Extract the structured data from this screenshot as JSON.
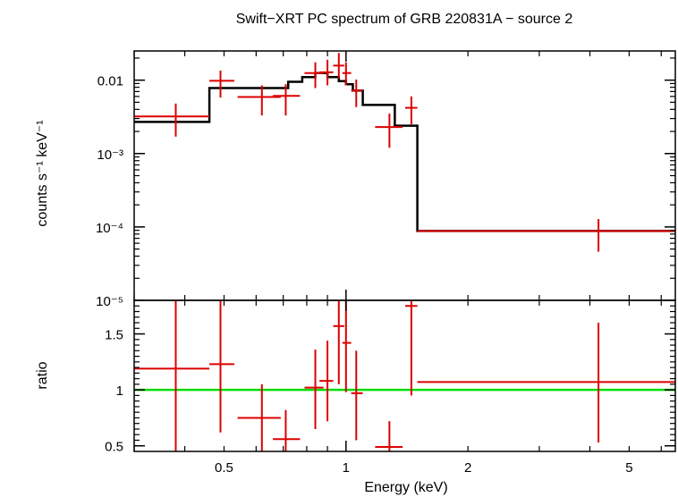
{
  "chart_data": [
    {
      "type": "step+errorbar",
      "title": "Swift−XRT PC spectrum of GRB 220831A − source 2",
      "xlabel": "Energy (keV)",
      "ylabel": "counts s⁻¹ keV⁻¹",
      "xscale": "log",
      "yscale": "log",
      "xlim": [
        0.3,
        6.5
      ],
      "ylim": [
        1e-05,
        0.025
      ],
      "ytick_labels": [
        {
          "v": 0.01,
          "t": "0.01"
        },
        {
          "v": 0.001,
          "t": "10⁻³"
        },
        {
          "v": 0.0001,
          "t": "10⁻⁴"
        },
        {
          "v": 1e-05,
          "t": "10⁻⁵"
        }
      ],
      "model_step": {
        "color": "#000000",
        "points": [
          [
            0.3,
            0.0027
          ],
          [
            0.46,
            0.0027
          ],
          [
            0.46,
            0.0078
          ],
          [
            0.72,
            0.0078
          ],
          [
            0.72,
            0.0095
          ],
          [
            0.78,
            0.0095
          ],
          [
            0.78,
            0.011
          ],
          [
            0.84,
            0.011
          ],
          [
            0.84,
            0.0125
          ],
          [
            0.9,
            0.0125
          ],
          [
            0.9,
            0.011
          ],
          [
            0.96,
            0.011
          ],
          [
            0.96,
            0.0097
          ],
          [
            1.0,
            0.0097
          ],
          [
            1.0,
            0.0088
          ],
          [
            1.04,
            0.0088
          ],
          [
            1.04,
            0.0072
          ],
          [
            1.1,
            0.0072
          ],
          [
            1.1,
            0.0046
          ],
          [
            1.32,
            0.0046
          ],
          [
            1.32,
            0.0024
          ],
          [
            1.5,
            0.0024
          ],
          [
            1.5,
            8.8e-05
          ],
          [
            6.5,
            8.8e-05
          ]
        ]
      },
      "data_points": {
        "color": "#dd0000",
        "points": [
          {
            "x": 0.38,
            "xlo": 0.3,
            "xhi": 0.46,
            "y": 0.0032,
            "ylo": 0.0017,
            "yhi": 0.0048
          },
          {
            "x": 0.49,
            "xlo": 0.46,
            "xhi": 0.53,
            "y": 0.0098,
            "ylo": 0.0058,
            "yhi": 0.0135
          },
          {
            "x": 0.62,
            "xlo": 0.54,
            "xhi": 0.69,
            "y": 0.0059,
            "ylo": 0.0033,
            "yhi": 0.0085
          },
          {
            "x": 0.71,
            "xlo": 0.66,
            "xhi": 0.77,
            "y": 0.0061,
            "ylo": 0.0033,
            "yhi": 0.0088
          },
          {
            "x": 0.84,
            "xlo": 0.79,
            "xhi": 0.88,
            "y": 0.0125,
            "ylo": 0.0078,
            "yhi": 0.0175
          },
          {
            "x": 0.9,
            "xlo": 0.86,
            "xhi": 0.93,
            "y": 0.0128,
            "ylo": 0.0085,
            "yhi": 0.019
          },
          {
            "x": 0.96,
            "xlo": 0.93,
            "xhi": 0.99,
            "y": 0.0158,
            "ylo": 0.0105,
            "yhi": 0.0235
          },
          {
            "x": 1.0,
            "xlo": 0.98,
            "xhi": 1.03,
            "y": 0.0125,
            "ylo": 0.0085,
            "yhi": 0.0175
          },
          {
            "x": 1.06,
            "xlo": 1.03,
            "xhi": 1.1,
            "y": 0.0072,
            "ylo": 0.0043,
            "yhi": 0.0102
          },
          {
            "x": 1.28,
            "xlo": 1.18,
            "xhi": 1.38,
            "y": 0.0023,
            "ylo": 0.0012,
            "yhi": 0.0035
          },
          {
            "x": 1.45,
            "xlo": 1.4,
            "xhi": 1.5,
            "y": 0.0042,
            "ylo": 0.0025,
            "yhi": 0.006
          },
          {
            "x": 4.2,
            "xlo": 1.5,
            "xhi": 6.5,
            "y": 8.8e-05,
            "ylo": 4.6e-05,
            "yhi": 0.000128
          }
        ]
      }
    },
    {
      "type": "errorbar",
      "xlabel": "Energy (keV)",
      "ylabel": "ratio",
      "xscale": "log",
      "xlim": [
        0.3,
        6.5
      ],
      "ylim": [
        0.45,
        1.8
      ],
      "xtick_labels": [
        {
          "v": 0.5,
          "t": "0.5"
        },
        {
          "v": 1,
          "t": "1"
        },
        {
          "v": 2,
          "t": "2"
        },
        {
          "v": 5,
          "t": "5"
        }
      ],
      "ytick_labels": [
        {
          "v": 0.5,
          "t": "0.5"
        },
        {
          "v": 1,
          "t": "1"
        },
        {
          "v": 1.5,
          "t": "1.5"
        }
      ],
      "reference_line": {
        "y": 1,
        "color": "#00dd00"
      },
      "data_points": {
        "color": "#dd0000",
        "points": [
          {
            "x": 0.38,
            "xlo": 0.3,
            "xhi": 0.46,
            "y": 1.19,
            "ylo": 0.45,
            "yhi": 1.8
          },
          {
            "x": 0.49,
            "xlo": 0.46,
            "xhi": 0.53,
            "y": 1.23,
            "ylo": 0.62,
            "yhi": 1.8
          },
          {
            "x": 0.62,
            "xlo": 0.54,
            "xhi": 0.69,
            "y": 0.75,
            "ylo": 0.45,
            "yhi": 1.05
          },
          {
            "x": 0.71,
            "xlo": 0.66,
            "xhi": 0.77,
            "y": 0.56,
            "ylo": 0.45,
            "yhi": 0.82
          },
          {
            "x": 0.84,
            "xlo": 0.79,
            "xhi": 0.88,
            "y": 1.02,
            "ylo": 0.65,
            "yhi": 1.36
          },
          {
            "x": 0.9,
            "xlo": 0.86,
            "xhi": 0.93,
            "y": 1.08,
            "ylo": 0.72,
            "yhi": 1.44
          },
          {
            "x": 0.96,
            "xlo": 0.93,
            "xhi": 0.99,
            "y": 1.57,
            "ylo": 1.05,
            "yhi": 1.8
          },
          {
            "x": 1.0,
            "xlo": 0.98,
            "xhi": 1.03,
            "y": 1.42,
            "ylo": 0.98,
            "yhi": 1.8
          },
          {
            "x": 1.06,
            "xlo": 1.03,
            "xhi": 1.1,
            "y": 0.97,
            "ylo": 0.55,
            "yhi": 1.35
          },
          {
            "x": 1.28,
            "xlo": 1.18,
            "xhi": 1.38,
            "y": 0.49,
            "ylo": 0.45,
            "yhi": 0.72
          },
          {
            "x": 1.45,
            "xlo": 1.4,
            "xhi": 1.5,
            "y": 1.75,
            "ylo": 0.95,
            "yhi": 1.8
          },
          {
            "x": 4.2,
            "xlo": 1.5,
            "xhi": 6.5,
            "y": 1.07,
            "ylo": 0.53,
            "yhi": 1.6
          }
        ]
      }
    }
  ]
}
